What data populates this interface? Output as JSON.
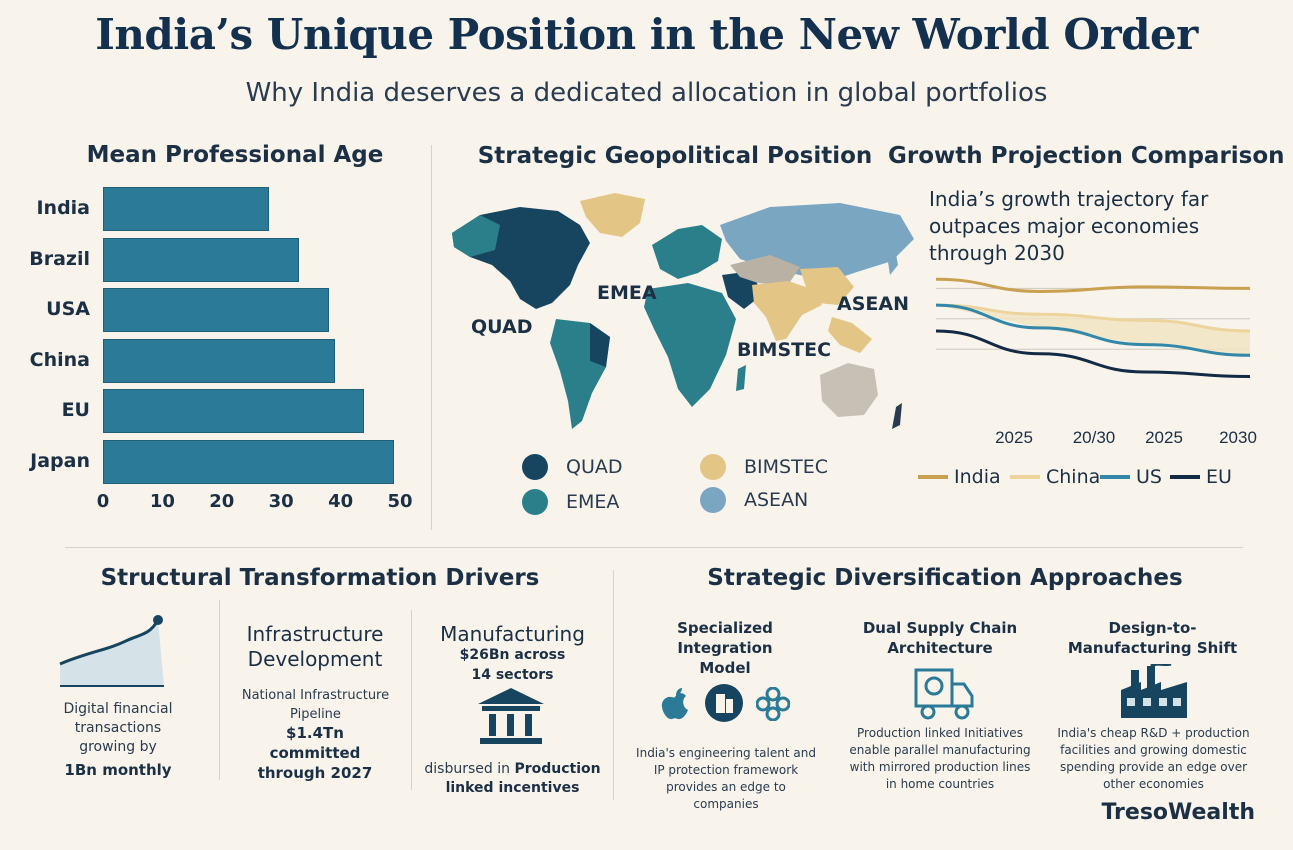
{
  "header": {
    "title": "India’s Unique Position in the New World Order",
    "subtitle": "Why India deserves a dedicated allocation in global portfolios"
  },
  "age_section": {
    "title": "Mean Professional Age"
  },
  "geo_section": {
    "title": "Strategic Geopolitical Position",
    "map_labels": [
      "QUAD",
      "EMEA",
      "BIMSTEC",
      "ASEAN"
    ],
    "legend": [
      {
        "name": "QUAD",
        "color": "#17445f"
      },
      {
        "name": "EMEA",
        "color": "#2a7f8a"
      },
      {
        "name": "BIMSTEC",
        "color": "#e3c585"
      },
      {
        "name": "ASEAN",
        "color": "#7aa6c2"
      }
    ]
  },
  "growth_section": {
    "title": "Growth Projection Comparison",
    "description": "India’s growth trajectory far outpaces major economies through 2030"
  },
  "chart_data": [
    {
      "type": "bar",
      "orientation": "horizontal",
      "title": "Mean Professional Age",
      "categories": [
        "India",
        "Brazil",
        "USA",
        "China",
        "EU",
        "Japan"
      ],
      "values": [
        28,
        33,
        38,
        39,
        44,
        49
      ],
      "xlim": [
        0,
        50
      ],
      "xticks": [
        "0",
        "10",
        "20",
        "30",
        "40",
        "50"
      ],
      "color": "#2a7a98"
    },
    {
      "type": "line",
      "title": "Growth Projection Comparison",
      "x_tick_labels": [
        "2025",
        "20/30",
        "2025",
        "2030"
      ],
      "series": [
        {
          "name": "India",
          "color": "#c9a050",
          "values": [
            8.6,
            7.8,
            8.1,
            8.0
          ]
        },
        {
          "name": "China",
          "color": "#ecd49c",
          "values": [
            6.9,
            6.3,
            5.9,
            5.2
          ]
        },
        {
          "name": "US",
          "color": "#3388a8",
          "values": [
            6.9,
            5.4,
            4.3,
            3.6
          ]
        },
        {
          "name": "EU",
          "color": "#132a45",
          "values": [
            5.2,
            3.7,
            2.5,
            2.2
          ]
        }
      ],
      "ylim": [
        0,
        10
      ],
      "grid": true,
      "legend_position": "bottom"
    }
  ],
  "structural": {
    "title": "Structural Transformation Drivers",
    "digital": {
      "text": "Digital financial transactions growing by",
      "bold": "1Bn monthly"
    },
    "infrastructure": {
      "title": "Infrastructure Development",
      "text": "National Infrastructure Pipeline",
      "bold": "$1.4Tn committed through 2027"
    },
    "manufacturing": {
      "title": "Manufacturing",
      "bold_top": "$26Bn across 14 sectors",
      "text": "disbursed in",
      "bold": "Production linked incentives"
    }
  },
  "diversification": {
    "title": "Strategic Diversification Approaches",
    "items": [
      {
        "title": "Specialized Integration Model",
        "text": "India's engineering talent and IP protection framework provides an edge to companies"
      },
      {
        "title": "Dual Supply Chain Architecture",
        "text": "Production linked Initiatives enable parallel manufacturing with mirrored production lines in home countries"
      },
      {
        "title": "Design-to-Manufacturing Shift",
        "text": "India's cheap R&D + production facilities and growing domestic spending provide an edge over other economies"
      }
    ]
  },
  "brand": "TresoWealth"
}
